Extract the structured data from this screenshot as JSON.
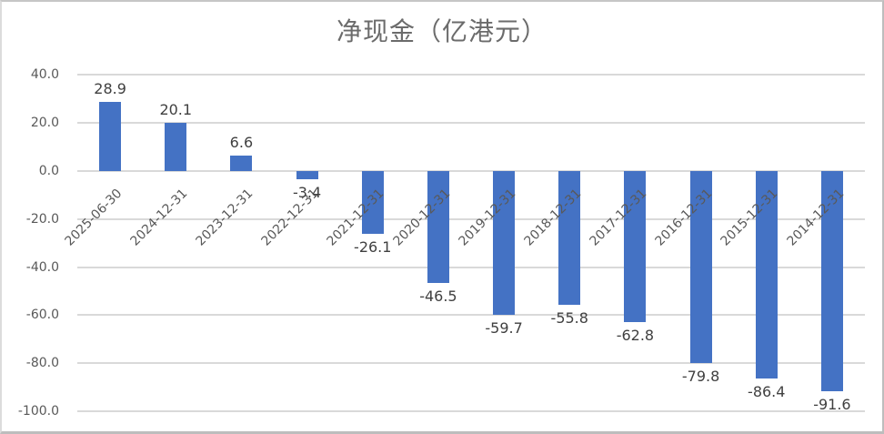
{
  "chart_data": {
    "type": "bar",
    "title": "净现金（亿港元）",
    "categories": [
      "2025-06-30",
      "2024-12-31",
      "2023-12-31",
      "2022-12-31",
      "2021-12-31",
      "2020-12-31",
      "2019-12-31",
      "2018-12-31",
      "2017-12-31",
      "2016-12-31",
      "2015-12-31",
      "2014-12-31"
    ],
    "values": [
      28.9,
      20.1,
      6.6,
      -3.4,
      -26.1,
      -46.5,
      -59.7,
      -55.8,
      -62.8,
      -79.8,
      -86.4,
      -91.6
    ],
    "value_labels": [
      "28.9",
      "20.1",
      "6.6",
      "-3.4",
      "-26.1",
      "-46.5",
      "-59.7",
      "-55.8",
      "-62.8",
      "-79.8",
      "-86.4",
      "-91.6"
    ],
    "xlabel": "",
    "ylabel": "",
    "ylim": [
      -100,
      40
    ],
    "ytick_step": 20,
    "ytick_labels": [
      "40.0",
      "20.0",
      "0.0",
      "-20.0",
      "-40.0",
      "-60.0",
      "-80.0",
      "-100.0"
    ],
    "grid": true,
    "legend": "none",
    "bar_color": "#4472C4",
    "gridline_color": "#D9D9D9",
    "title_color": "#6B6B6B",
    "axis_label_color": "#595959",
    "value_label_color": "#404040"
  }
}
